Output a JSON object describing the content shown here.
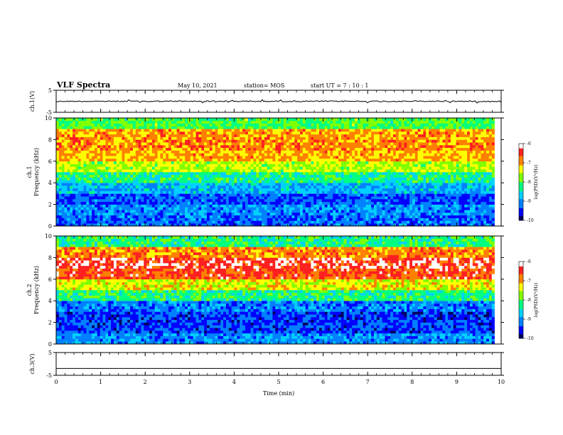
{
  "header": {
    "title": "VLF Spectra",
    "date": "May 10, 2021",
    "station": "station= MOS",
    "start_ut": "start  UT =  7 : 10 : 1"
  },
  "colors": {
    "spectrogram_scale": [
      "#000060",
      "#0000ff",
      "#0080ff",
      "#00d0ff",
      "#00ff80",
      "#80ff00",
      "#ffff00",
      "#ff8000",
      "#ff2020",
      "#ffffff"
    ]
  },
  "chart_data": [
    {
      "type": "line",
      "panel": "ch1-waveform",
      "ylabel": "ch.1(V)",
      "ylim": [
        -5,
        5
      ],
      "yticks": [
        "5",
        "-5"
      ],
      "series": [
        {
          "values_description_level": 0
        }
      ],
      "x": [
        0,
        10
      ],
      "y_level": 0
    },
    {
      "type": "heatmap",
      "panel": "ch1-spectrogram",
      "ylabel": "ch.1\nFrequency (kHz)",
      "ylabel_lines": [
        "ch.1",
        "Frequency (kHz)"
      ],
      "ylim": [
        0,
        10
      ],
      "yticks": [
        "0",
        "2",
        "4",
        "6",
        "8",
        "10"
      ],
      "xlim": [
        0,
        9.85
      ],
      "frequency_bands_khz": [
        0,
        1,
        2,
        3,
        4,
        5,
        6,
        7,
        8,
        9,
        10
      ],
      "log_psd_by_band": [
        -9.2,
        -9.0,
        -9.3,
        -8.8,
        -8.3,
        -7.6,
        -7.1,
        -6.9,
        -7.0,
        -8.0
      ],
      "colorbar": {
        "label": "log(PSD)(V²/Hz)",
        "range": [
          -10,
          -6
        ],
        "ticks": [
          "-6",
          "-7",
          "-8",
          "-9",
          "-10"
        ]
      }
    },
    {
      "type": "heatmap",
      "panel": "ch2-spectrogram",
      "ylabel": "ch.2\nFrequency (kHz)",
      "ylabel_lines": [
        "ch.2",
        "Frequency (kHz)"
      ],
      "ylim": [
        0,
        10
      ],
      "yticks": [
        "0",
        "2",
        "4",
        "6",
        "8",
        "10"
      ],
      "xlim": [
        0,
        9.85
      ],
      "frequency_bands_khz": [
        0,
        1,
        2,
        3,
        4,
        5,
        6,
        7,
        8,
        9,
        10
      ],
      "log_psd_by_band": [
        -9.0,
        -9.4,
        -9.4,
        -9.1,
        -8.2,
        -7.4,
        -6.6,
        -6.4,
        -6.9,
        -8.2
      ],
      "colorbar": {
        "label": "log(PSD)(V²/Hz)",
        "range": [
          -10,
          -6
        ],
        "ticks": [
          "-6",
          "-7",
          "-8",
          "-9",
          "-10"
        ]
      }
    },
    {
      "type": "line",
      "panel": "ch3-waveform",
      "ylabel": "ch.3(V)",
      "ylim": [
        -5,
        5
      ],
      "yticks": [
        "5",
        "-5"
      ],
      "x": [
        0,
        10
      ],
      "y_level": -2
    }
  ],
  "xaxis": {
    "label": "Time (min)",
    "range": [
      0,
      10
    ],
    "ticks": [
      "0",
      "1",
      "2",
      "3",
      "4",
      "5",
      "6",
      "7",
      "8",
      "9",
      "10"
    ]
  }
}
